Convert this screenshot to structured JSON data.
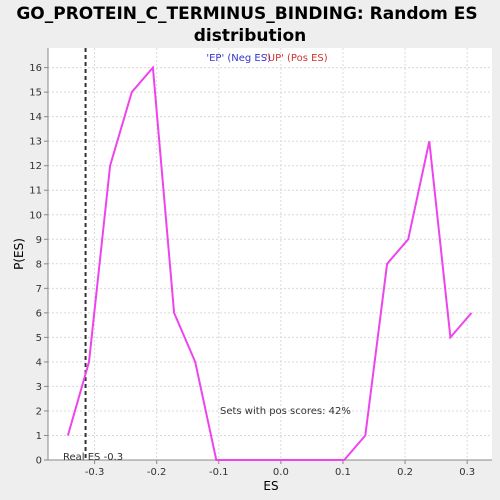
{
  "chart_data": {
    "type": "line",
    "title_line1": "GO_PROTEIN_C_TERMINUS_BINDING: Random ES",
    "title_line2": "distribution",
    "xlabel": "ES",
    "ylabel": "P(ES)",
    "xlim": [
      -0.375,
      0.34
    ],
    "ylim": [
      0,
      16.8
    ],
    "xticks": [
      -0.3,
      -0.2,
      -0.1,
      0.0,
      0.1,
      0.2,
      0.3
    ],
    "xtick_labels": [
      "-0.3",
      "-0.2",
      "-0.1",
      "0.0",
      "0.1",
      "0.2",
      "0.3"
    ],
    "yticks": [
      0,
      1,
      2,
      3,
      4,
      5,
      6,
      7,
      8,
      9,
      10,
      11,
      12,
      13,
      14,
      15,
      16
    ],
    "ytick_labels": [
      "0",
      "1",
      "2",
      "3",
      "4",
      "5",
      "6",
      "7",
      "8",
      "9",
      "10",
      "11",
      "12",
      "13",
      "14",
      "15",
      "16"
    ],
    "grid": true,
    "series": [
      {
        "color": "#ee44ee",
        "x": [
          -0.343,
          -0.309,
          -0.275,
          -0.24,
          -0.206,
          -0.172,
          -0.138,
          -0.104,
          -0.069,
          -0.035,
          0.0,
          0.034,
          0.068,
          0.102,
          0.136,
          0.171,
          0.205,
          0.239,
          0.273,
          0.307
        ],
        "y": [
          1,
          4,
          12,
          15,
          16,
          6,
          4,
          0,
          0,
          0,
          0,
          0,
          0,
          0,
          1,
          8,
          9,
          13,
          5,
          6
        ]
      }
    ],
    "real_es": {
      "value": -0.3145,
      "label": "Real ES -0.3"
    },
    "legend": {
      "neg": "'EP' (Neg ES)",
      "pos": "'UP' (Pos ES)",
      "placement": "top-center"
    },
    "annotation": "Sets with pos scores: 42%"
  },
  "colors": {
    "line": "#ee44ee",
    "grid": "#d9d9d9",
    "real_es_line": "#333333",
    "legend_neg": "#3333cc",
    "legend_pos": "#cc3333",
    "plot_bg": "#ffffff",
    "page_bg": "#eeeeee"
  }
}
